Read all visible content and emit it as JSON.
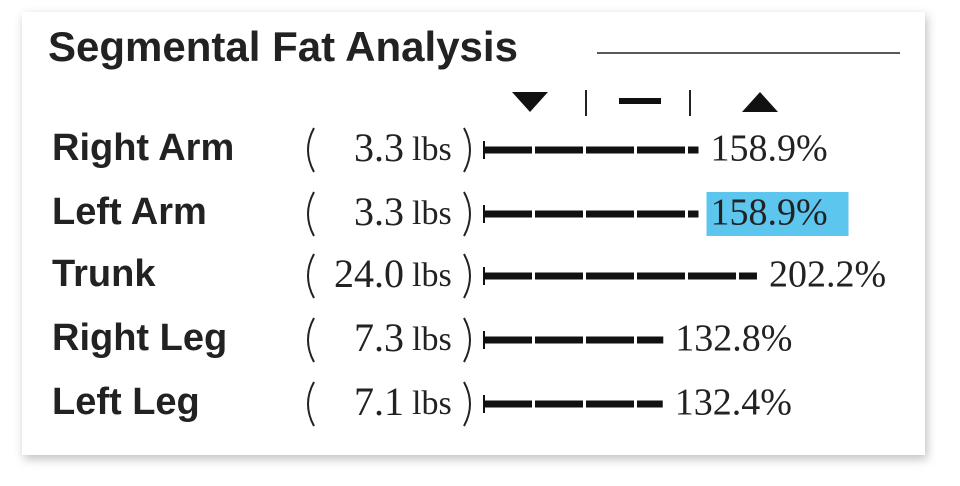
{
  "title": "Segmental Fat Analysis",
  "rows": [
    {
      "segment": "Right Arm",
      "mass": "3.3",
      "unit": "lbs",
      "percent": 158.9,
      "percent_label": "158.9%",
      "highlight": false
    },
    {
      "segment": "Left Arm",
      "mass": "3.3",
      "unit": "lbs",
      "percent": 158.9,
      "percent_label": "158.9%",
      "highlight": true
    },
    {
      "segment": "Trunk",
      "mass": "24.0",
      "unit": "lbs",
      "percent": 202.2,
      "percent_label": "202.2%",
      "highlight": false
    },
    {
      "segment": "Right Leg",
      "mass": "7.3",
      "unit": "lbs",
      "percent": 132.8,
      "percent_label": "132.8%",
      "highlight": false
    },
    {
      "segment": "Left Leg",
      "mass": "7.1",
      "unit": "lbs",
      "percent": 132.4,
      "percent_label": "132.4%",
      "highlight": false
    }
  ]
}
